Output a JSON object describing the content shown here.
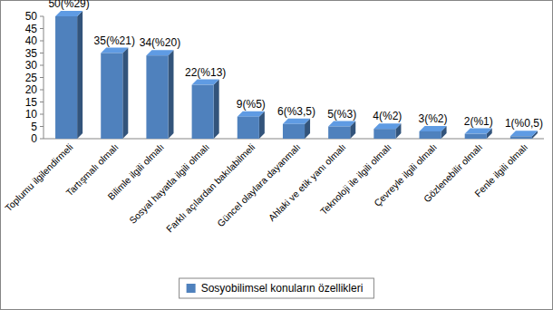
{
  "chart_data": {
    "type": "bar",
    "categories": [
      "Toplumu ilgilendirmeli",
      "Tartışmalı olmalı",
      "Bilimle ilgili olmalı",
      "Sosyal hayatla ilgili olmalı",
      "Farklı açılardan bakılabilmeli",
      "Güncel olaylara dayanmalı",
      "Ahlaki ve etik yanı olmalı",
      "Teknoloji ile ilgili olmalı",
      "Çevreyle ilgili olmalı",
      "Gözlenebilir olmalı",
      "Fenle ilgili olmalı"
    ],
    "series": [
      {
        "name": "Sosyobilimsel konuların özellikleri",
        "color": "#4f81bd",
        "values": [
          50,
          35,
          34,
          22,
          9,
          6,
          5,
          4,
          3,
          2,
          1
        ],
        "value_labels": [
          "50(%29)",
          "35(%21)",
          "34(%20)",
          "22(%13)",
          "9(%5)",
          "6(%3,5)",
          "5(%3)",
          "4(%2)",
          "3(%2)",
          "2(%1)",
          "1(%0,5)"
        ]
      }
    ],
    "ylim": [
      0,
      50
    ],
    "yticks": [
      0,
      5,
      10,
      15,
      20,
      25,
      30,
      35,
      40,
      45,
      50
    ],
    "grid": false,
    "data_labels": true,
    "legend": "bottom"
  }
}
